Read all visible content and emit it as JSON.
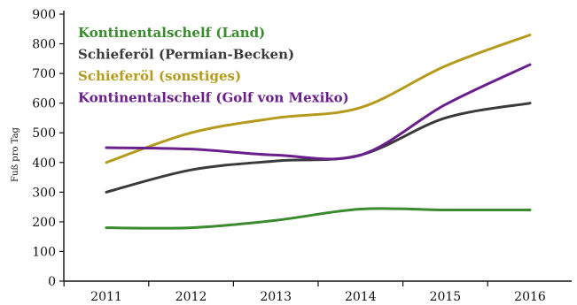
{
  "chart_data": {
    "type": "line",
    "title": "",
    "xlabel": "",
    "ylabel": "Fuß pro Tag",
    "x": [
      "2011",
      "2012",
      "2013",
      "2014",
      "2015",
      "2016"
    ],
    "ylim": [
      0,
      900
    ],
    "yticks": [
      0,
      100,
      200,
      300,
      400,
      500,
      600,
      700,
      800,
      900
    ],
    "grid": false,
    "legend_position": "top-left",
    "series": [
      {
        "name": "Kontinentalschelf (Land)",
        "color": "#3a8a2e",
        "values": [
          180,
          180,
          205,
          243,
          240,
          240
        ]
      },
      {
        "name": "Schieferöl (Permian-Becken)",
        "color": "#3a3a3a",
        "values": [
          300,
          375,
          405,
          425,
          550,
          600
        ]
      },
      {
        "name": "Schieferöl (sonstiges)",
        "color": "#b59a1c",
        "values": [
          400,
          500,
          550,
          585,
          725,
          830
        ]
      },
      {
        "name": "Kontinentalschelf (Golf von Mexiko)",
        "color": "#6a1f8c",
        "values": [
          450,
          445,
          425,
          425,
          595,
          730
        ]
      }
    ]
  }
}
